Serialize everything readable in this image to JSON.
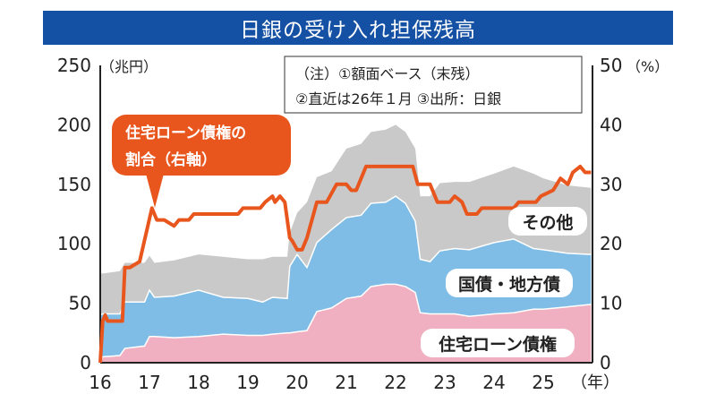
{
  "title": "日銀の受け入れ担保残高",
  "note": {
    "line1": "（注）①額面ベース（末残）",
    "line2": "②直近は26年１月 ③出所：日銀"
  },
  "colors": {
    "title_bg": "#1450a3",
    "housing": "#f0b0c1",
    "govt": "#7fbde6",
    "other": "#c9c9c9",
    "ratio_line": "#e8561e"
  },
  "chart_data": {
    "type": "area",
    "stacked": true,
    "xlabel": "（年）",
    "ylabel_left": "（兆円）",
    "ylabel_right": "（%）",
    "ylim_left": [
      0,
      250
    ],
    "ylim_right": [
      0,
      50
    ],
    "xlim": [
      16,
      26
    ],
    "x_ticks": [
      "16",
      "17",
      "18",
      "19",
      "20",
      "21",
      "22",
      "23",
      "24",
      "25"
    ],
    "y_ticks_left": [
      "0",
      "50",
      "100",
      "150",
      "200",
      "250"
    ],
    "y_ticks_right": [
      "0",
      "10",
      "20",
      "30",
      "40",
      "50"
    ],
    "grid": false,
    "area_x": [
      16.0,
      16.05,
      16.4,
      16.5,
      16.9,
      17.0,
      17.1,
      17.5,
      18.0,
      18.5,
      19.0,
      19.3,
      19.5,
      19.8,
      19.85,
      20.0,
      20.2,
      20.4,
      20.7,
      21.0,
      21.3,
      21.5,
      21.8,
      22.0,
      22.2,
      22.4,
      22.5,
      22.7,
      22.9,
      23.2,
      23.5,
      24.0,
      24.4,
      24.8,
      25.0,
      25.5,
      25.97
    ],
    "series": [
      {
        "name": "住宅ローン債権",
        "axis": "left",
        "values": [
          0,
          5,
          6,
          12,
          14,
          22,
          22,
          21,
          22,
          24,
          23,
          23,
          24,
          25,
          25,
          26,
          27,
          43,
          46,
          54,
          56,
          64,
          66,
          66,
          64,
          59,
          42,
          41,
          41,
          41,
          39,
          41,
          42,
          45,
          45,
          47,
          49
        ]
      },
      {
        "name": "国債・地方債",
        "axis": "left",
        "values": [
          40,
          36,
          35,
          39,
          37,
          39,
          33,
          35,
          39,
          31,
          31,
          28,
          31,
          29,
          56,
          65,
          53,
          58,
          66,
          68,
          68,
          70,
          69,
          74,
          70,
          60,
          45,
          44,
          53,
          55,
          56,
          60,
          62,
          51,
          50,
          45,
          42
        ]
      },
      {
        "name": "その他",
        "axis": "left",
        "values": [
          35,
          34,
          36,
          33,
          33,
          29,
          29,
          30,
          30,
          34,
          33,
          36,
          34,
          35,
          28,
          35,
          55,
          55,
          49,
          58,
          60,
          60,
          61,
          60,
          60,
          61,
          53,
          55,
          57,
          56,
          57,
          58,
          61,
          63,
          60,
          57,
          56
        ]
      }
    ],
    "line": {
      "name": "住宅ローン債権の割合（右軸）",
      "axis": "right",
      "x": [
        16.0,
        16.05,
        16.1,
        16.15,
        16.45,
        16.5,
        16.6,
        16.8,
        17.05,
        17.15,
        17.3,
        17.5,
        17.6,
        17.8,
        17.9,
        18.8,
        18.9,
        19.25,
        19.35,
        19.5,
        19.55,
        19.65,
        19.75,
        19.85,
        19.9,
        20.0,
        20.1,
        20.2,
        20.4,
        20.6,
        20.8,
        21.0,
        21.1,
        21.2,
        21.4,
        22.35,
        22.45,
        22.7,
        22.85,
        23.1,
        23.2,
        23.35,
        23.45,
        23.65,
        23.75,
        24.4,
        24.5,
        24.85,
        24.95,
        25.2,
        25.35,
        25.5,
        25.6,
        25.75,
        25.85,
        25.97
      ],
      "values": [
        0,
        7,
        8,
        7,
        7,
        16,
        16,
        17,
        26,
        24,
        24,
        23,
        24,
        24,
        25,
        25,
        26,
        26,
        27,
        28,
        27,
        28,
        27,
        21,
        20.5,
        19,
        19,
        21,
        27,
        27,
        30,
        30,
        29,
        29,
        33,
        33,
        30,
        30,
        27,
        27,
        28,
        27,
        25,
        25,
        26,
        26,
        27,
        27,
        28,
        29,
        31,
        30,
        32,
        33,
        32,
        32
      ]
    }
  }
}
